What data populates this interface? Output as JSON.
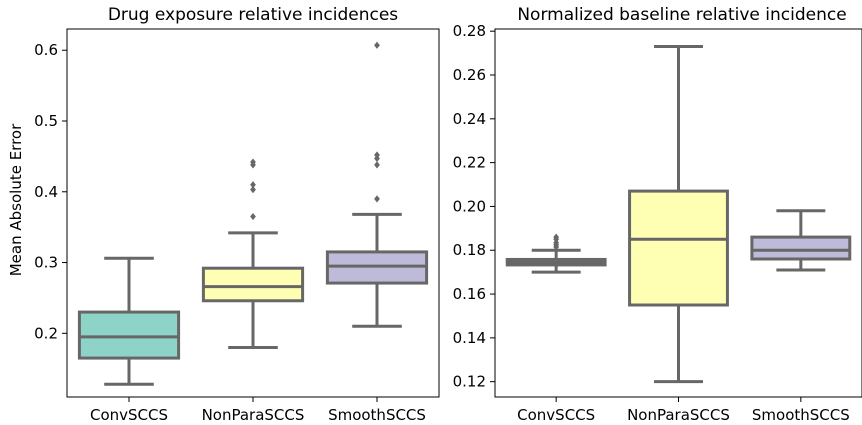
{
  "chart_data": [
    {
      "type": "box",
      "title": "Drug exposure relative incidences",
      "xlabel": "",
      "ylabel": "Mean Absolute Error",
      "ylim": [
        0.11,
        0.63
      ],
      "yticks": [
        0.2,
        0.3,
        0.4,
        0.5,
        0.6
      ],
      "ytick_labels": [
        "0.2",
        "0.3",
        "0.4",
        "0.5",
        "0.6"
      ],
      "categories": [
        "ConvSCCS",
        "NonParaSCCS",
        "SmoothSCCS"
      ],
      "boxes": [
        {
          "q1": 0.165,
          "median": 0.195,
          "q3": 0.23,
          "whisker_low": 0.128,
          "whisker_high": 0.306,
          "outliers": [],
          "color": "#8dd3c7"
        },
        {
          "q1": 0.246,
          "median": 0.266,
          "q3": 0.292,
          "whisker_low": 0.18,
          "whisker_high": 0.342,
          "outliers": [
            0.365,
            0.403,
            0.41,
            0.438,
            0.442
          ],
          "color": "#ffffb3"
        },
        {
          "q1": 0.271,
          "median": 0.295,
          "q3": 0.315,
          "whisker_low": 0.21,
          "whisker_high": 0.368,
          "outliers": [
            0.39,
            0.438,
            0.447,
            0.452,
            0.607
          ],
          "color": "#bebada"
        }
      ],
      "grid": false,
      "legend": "none"
    },
    {
      "type": "box",
      "title": "Normalized baseline relative incidence",
      "xlabel": "",
      "ylabel": "",
      "ylim": [
        0.113,
        0.281
      ],
      "yticks": [
        0.12,
        0.14,
        0.16,
        0.18,
        0.2,
        0.22,
        0.24,
        0.26,
        0.28
      ],
      "ytick_labels": [
        "0.12",
        "0.14",
        "0.16",
        "0.18",
        "0.20",
        "0.22",
        "0.24",
        "0.26",
        "0.28"
      ],
      "categories": [
        "ConvSCCS",
        "NonParaSCCS",
        "SmoothSCCS"
      ],
      "boxes": [
        {
          "q1": 0.1733,
          "median": 0.1745,
          "q3": 0.1758,
          "whisker_low": 0.17,
          "whisker_high": 0.18,
          "outliers": [
            0.1815,
            0.1825,
            0.1835,
            0.185,
            0.186
          ],
          "color": "#8dd3c7"
        },
        {
          "q1": 0.155,
          "median": 0.185,
          "q3": 0.207,
          "whisker_low": 0.12,
          "whisker_high": 0.273,
          "outliers": [],
          "color": "#ffffb3"
        },
        {
          "q1": 0.176,
          "median": 0.18,
          "q3": 0.186,
          "whisker_low": 0.171,
          "whisker_high": 0.198,
          "outliers": [],
          "color": "#bebada"
        }
      ],
      "grid": false,
      "legend": "none"
    }
  ],
  "colors": {
    "line": "#676767",
    "box_fills": [
      "#8dd3c7",
      "#ffffb3",
      "#bebada"
    ]
  }
}
